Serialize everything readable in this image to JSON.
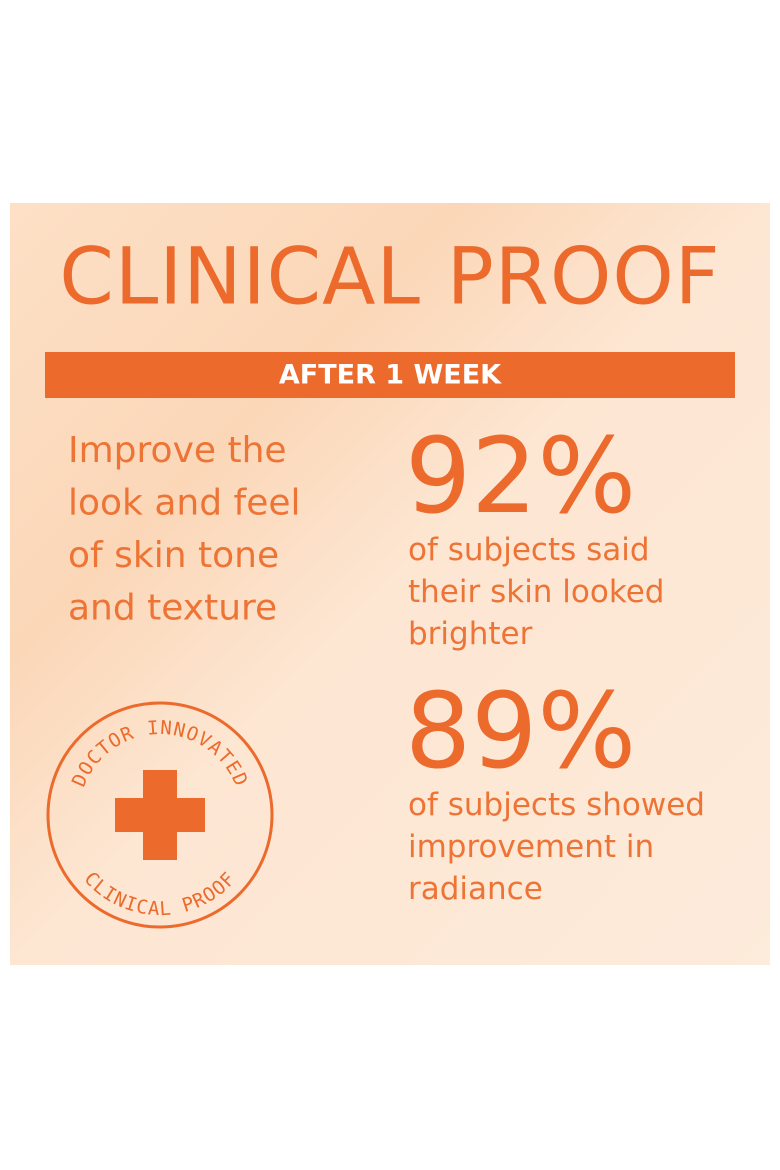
{
  "header": {
    "title": "CLINICAL PROOF",
    "banner": "AFTER 1 WEEK"
  },
  "claim": {
    "lines": [
      "Improve the",
      "look and feel",
      "of skin tone",
      "and texture"
    ]
  },
  "stats": [
    {
      "figure": "92%",
      "lines": [
        "of subjects said",
        "their skin looked",
        "brighter"
      ]
    },
    {
      "figure": "89%",
      "lines": [
        "of subjects showed",
        "improvement in",
        "radiance"
      ]
    }
  ],
  "badge": {
    "top": "DOCTOR INNOVATED",
    "bottom": "CLINICAL PROOF"
  }
}
